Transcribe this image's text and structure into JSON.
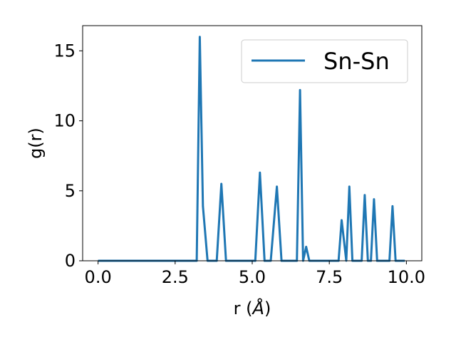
{
  "chart_data": {
    "type": "line",
    "xlabel_prefix": "r (",
    "xlabel_unit": "Å",
    "xlabel_suffix": ")",
    "ylabel": "g(r)",
    "xlim": [
      -0.5,
      10.5
    ],
    "ylim": [
      0,
      16.8
    ],
    "x_ticks": [
      0.0,
      2.5,
      5.0,
      7.5,
      10.0
    ],
    "x_tick_labels": [
      "0.0",
      "2.5",
      "5.0",
      "7.5",
      "10.0"
    ],
    "y_ticks": [
      0,
      5,
      10,
      15
    ],
    "y_tick_labels": [
      "0",
      "5",
      "10",
      "15"
    ],
    "grid": false,
    "legend_position": "top-right",
    "series": [
      {
        "name": "Sn-Sn",
        "color": "#1f77b4",
        "x": [
          0.0,
          3.2,
          3.3,
          3.4,
          3.55,
          3.85,
          4.0,
          4.15,
          5.1,
          5.25,
          5.4,
          5.6,
          5.8,
          5.95,
          6.45,
          6.55,
          6.65,
          6.75,
          6.85,
          7.8,
          7.9,
          8.05,
          8.15,
          8.25,
          8.55,
          8.65,
          8.75,
          8.85,
          8.95,
          9.05,
          9.45,
          9.55,
          9.65,
          9.95
        ],
        "y": [
          0,
          0,
          16.0,
          3.9,
          0,
          0,
          5.5,
          0,
          0,
          6.3,
          0,
          0,
          5.3,
          0,
          0,
          12.2,
          0,
          1.0,
          0,
          0,
          2.9,
          0,
          5.3,
          0,
          0,
          4.7,
          0,
          0,
          4.4,
          0,
          0,
          3.9,
          0,
          0
        ]
      }
    ]
  }
}
